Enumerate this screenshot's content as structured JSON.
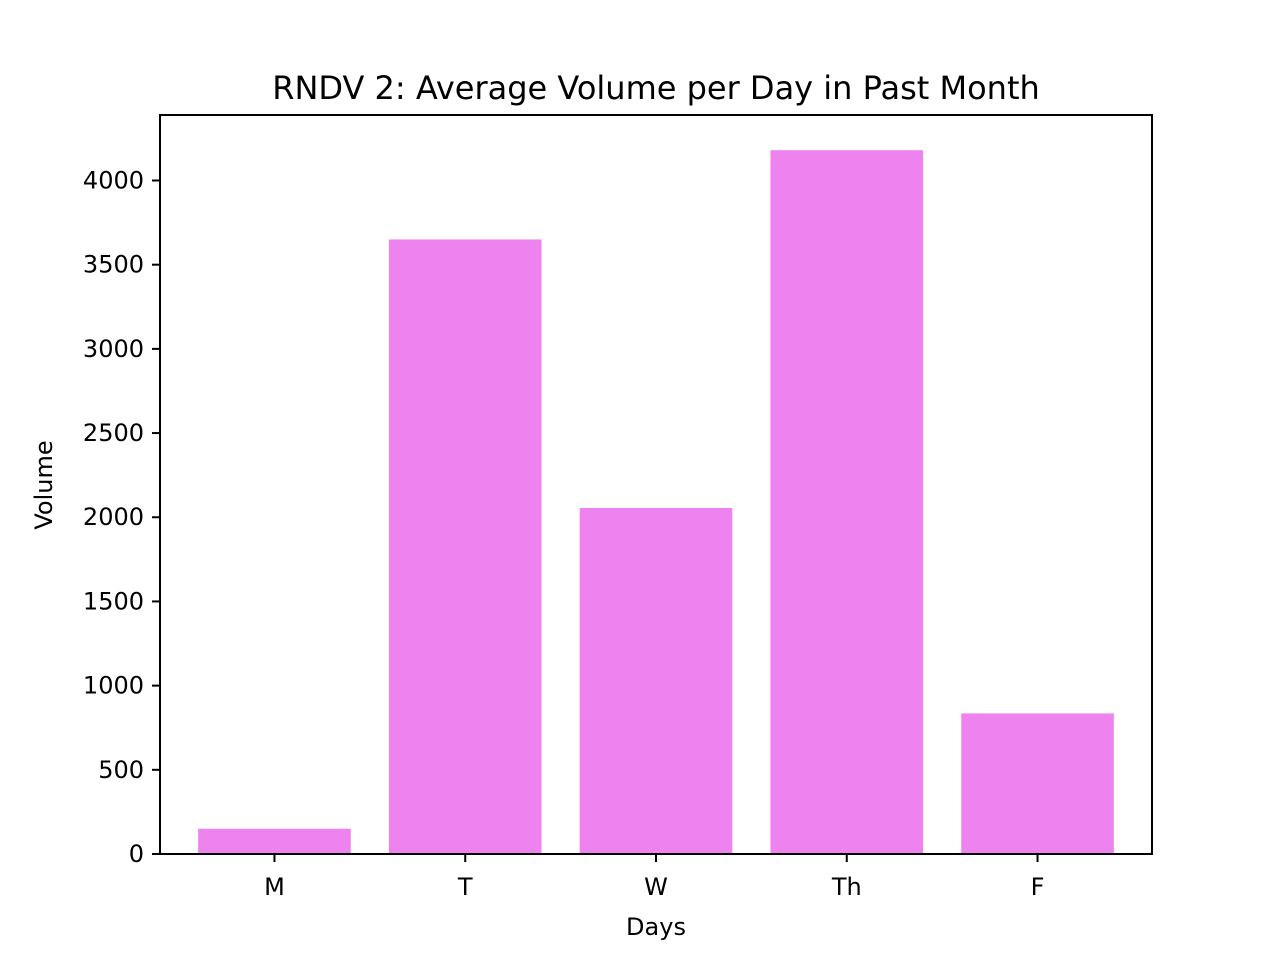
{
  "chart_data": {
    "type": "bar",
    "title": "RNDV 2: Average Volume per Day in Past Month",
    "xlabel": "Days",
    "ylabel": "Volume",
    "categories": [
      "M",
      "T",
      "W",
      "Th",
      "F"
    ],
    "values": [
      150,
      3650,
      2055,
      4180,
      835
    ],
    "ylim": [
      0,
      4389
    ],
    "yticks": [
      0,
      500,
      1000,
      1500,
      2000,
      2500,
      3000,
      3500,
      4000
    ],
    "grid": false,
    "legend": "none",
    "bar_color": "#EE82EE"
  }
}
